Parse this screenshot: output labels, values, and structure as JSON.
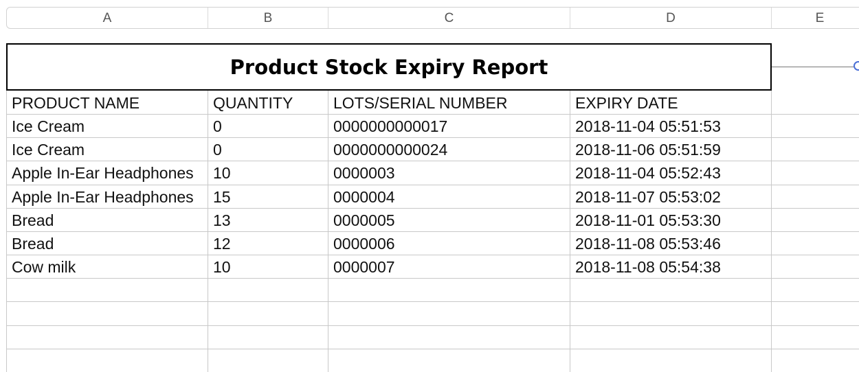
{
  "columns": [
    "A",
    "B",
    "C",
    "D",
    "E"
  ],
  "report": {
    "title": "Product Stock Expiry Report"
  },
  "table": {
    "headers": [
      "PRODUCT NAME",
      "QUANTITY",
      "LOTS/SERIAL NUMBER",
      "EXPIRY DATE"
    ],
    "rows": [
      [
        "Ice Cream",
        "0",
        "0000000000017",
        "2018-11-04 05:51:53"
      ],
      [
        "Ice Cream",
        "0",
        "0000000000024",
        "2018-11-06 05:51:59"
      ],
      [
        "Apple In-Ear Headphones",
        "10",
        "0000003",
        "2018-11-04 05:52:43"
      ],
      [
        "Apple In-Ear Headphones",
        "15",
        "0000004",
        "2018-11-07 05:53:02"
      ],
      [
        "Bread",
        "13",
        "0000005",
        "2018-11-01 05:53:30"
      ],
      [
        "Bread",
        "12",
        "0000006",
        "2018-11-08 05:53:46"
      ],
      [
        "Cow milk",
        "10",
        "0000007",
        "2018-11-08 05:54:38"
      ]
    ]
  },
  "colors": {
    "title_border": "#000000",
    "grid": "#c8c8c8",
    "selection_handle": "#4a6fd6"
  }
}
